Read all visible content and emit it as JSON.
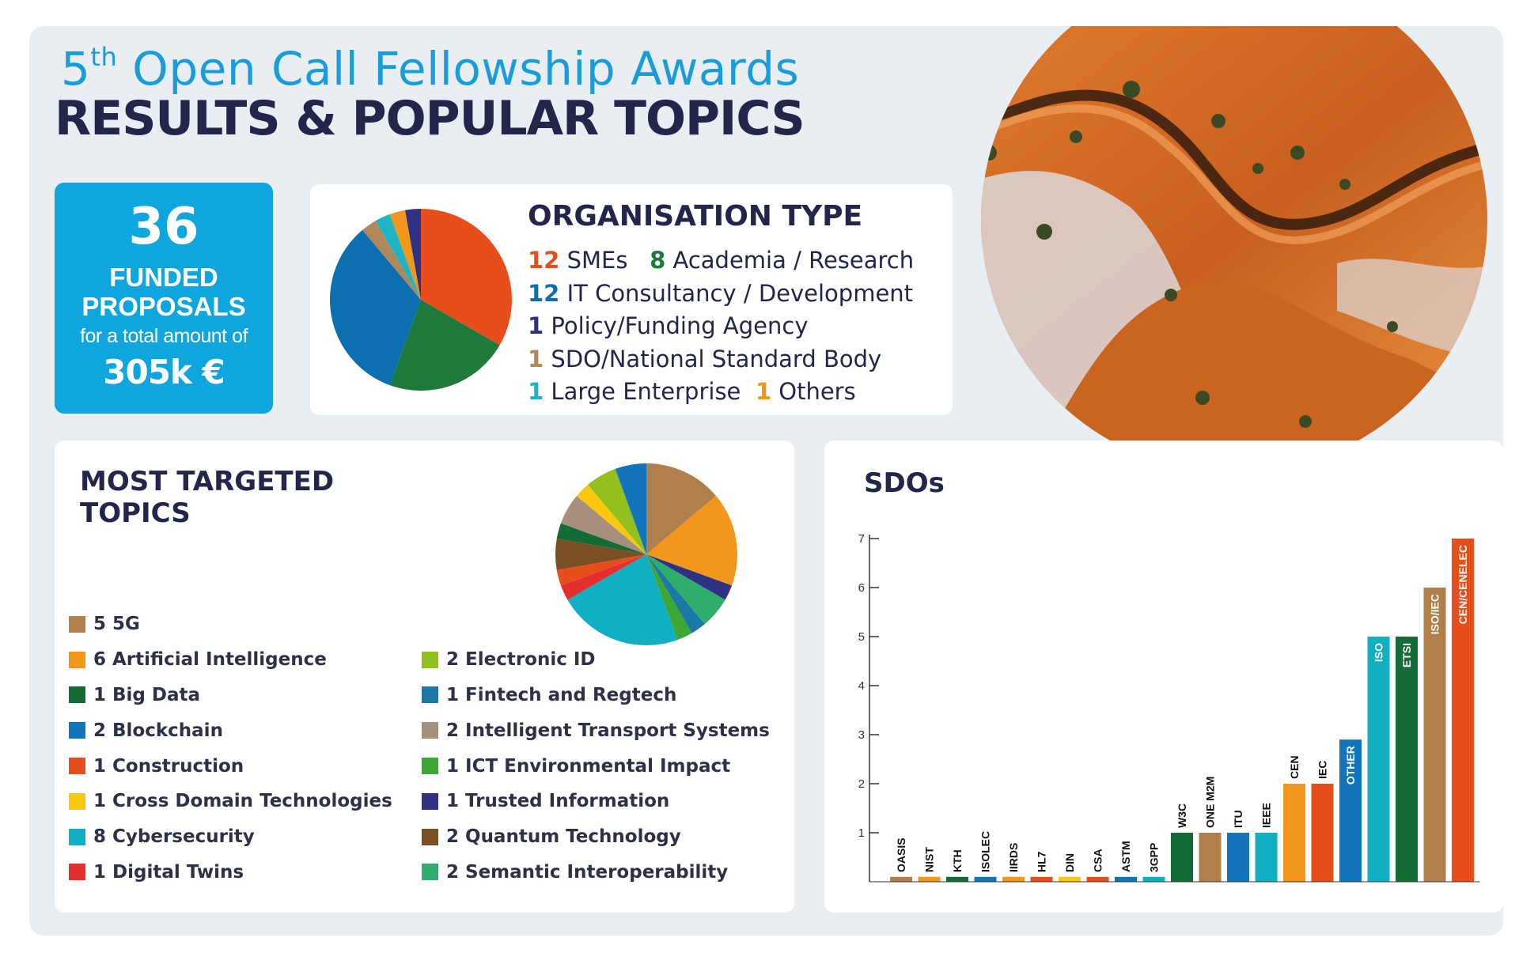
{
  "header": {
    "title_prefix": "5",
    "title_sup": "th",
    "title_rest": " Open Call Fellowship Awards",
    "subtitle": "RESULTS & POPULAR TOPICS"
  },
  "funded": {
    "count": "36",
    "label_line1": "FUNDED",
    "label_line2": "PROPOSALS",
    "small": "for a total amount of",
    "amount": "305k €"
  },
  "organisation": {
    "title": "ORGANISATION TYPE",
    "items": [
      {
        "count": "12",
        "label": "SMEs",
        "color": "#e84e1b"
      },
      {
        "count": "8",
        "label": "Academia / Research",
        "color": "#1d7a3a"
      },
      {
        "count": "12",
        "label": "IT Consultancy / Development",
        "color": "#0b6fb0"
      },
      {
        "count": "1",
        "label": "Policy/Funding Agency",
        "color": "#2e3184"
      },
      {
        "count": "1",
        "label": "SDO/National Standard Body",
        "color": "#b0875a"
      },
      {
        "count": "1",
        "label": "Large Enterprise",
        "color": "#1fb3c4"
      },
      {
        "count": "1",
        "label": "Others",
        "color": "#f3961c"
      }
    ]
  },
  "topics": {
    "title_line1": "MOST TARGETED",
    "title_line2": "TOPICS",
    "items": [
      {
        "count": "5",
        "label": "5G",
        "color": "#b07f4b"
      },
      {
        "count": "6",
        "label": "Artificial Intelligence",
        "color": "#f3961c"
      },
      {
        "count": "1",
        "label": "Big Data",
        "color": "#136b35"
      },
      {
        "count": "2",
        "label": "Blockchain",
        "color": "#1274bb"
      },
      {
        "count": "1",
        "label": "Construction",
        "color": "#e84e1b"
      },
      {
        "count": "1",
        "label": "Cross Domain Technologies",
        "color": "#f9c80e"
      },
      {
        "count": "8",
        "label": "Cybersecurity",
        "color": "#10afc2"
      },
      {
        "count": "1",
        "label": "Digital Twins",
        "color": "#e3302c"
      },
      {
        "count": "2",
        "label": "Electronic ID",
        "color": "#93c01f"
      },
      {
        "count": "1",
        "label": "Fintech and Regtech",
        "color": "#1b79a6"
      },
      {
        "count": "2",
        "label": "Intelligent Transport Systems",
        "color": "#a88f7b"
      },
      {
        "count": "1",
        "label": "ICT Environmental Impact",
        "color": "#3fa535"
      },
      {
        "count": "1",
        "label": "Trusted Information",
        "color": "#2e3184"
      },
      {
        "count": "2",
        "label": "Quantum Technology",
        "color": "#7a4f23"
      },
      {
        "count": "2",
        "label": "Semantic Interoperability",
        "color": "#2fae6b"
      }
    ]
  },
  "chart_data": [
    {
      "type": "pie",
      "title": "ORGANISATION TYPE",
      "categories": [
        "SMEs",
        "Academia / Research",
        "IT Consultancy / Development",
        "SDO/National Standard Body",
        "Large Enterprise",
        "Others",
        "Policy/Funding Agency"
      ],
      "values": [
        12,
        8,
        12,
        1,
        1,
        1,
        1
      ],
      "colors": [
        "#e84e1b",
        "#1d7a3a",
        "#0b6fb0",
        "#b0875a",
        "#1fb3c4",
        "#f3961c",
        "#2e3184"
      ]
    },
    {
      "type": "pie",
      "title": "MOST TARGETED TOPICS",
      "categories": [
        "5G",
        "Artificial Intelligence",
        "Trusted Information",
        "Semantic Interoperability",
        "Fintech and Regtech",
        "ICT Environmental Impact",
        "Cybersecurity",
        "Digital Twins",
        "Construction",
        "Quantum Technology",
        "Big Data",
        "Intelligent Transport Systems",
        "Cross Domain Technologies",
        "Electronic ID",
        "Blockchain"
      ],
      "values": [
        5,
        6,
        1,
        2,
        1,
        1,
        8,
        1,
        1,
        2,
        1,
        2,
        1,
        2,
        2
      ],
      "colors": [
        "#b07f4b",
        "#f3961c",
        "#2e3184",
        "#2fae6b",
        "#1b79a6",
        "#3fa535",
        "#10afc2",
        "#e3302c",
        "#e84e1b",
        "#7a4f23",
        "#136b35",
        "#a88f7b",
        "#f9c80e",
        "#93c01f",
        "#1274bb"
      ]
    },
    {
      "type": "bar",
      "title": "SDOs",
      "categories": [
        "OASIS",
        "NIST",
        "KTH",
        "ISOLEC",
        "IIRDS",
        "HL7",
        "DIN",
        "CSA",
        "ASTM",
        "3GPP",
        "W3C",
        "ONE M2M",
        "ITU",
        "IEEE",
        "CEN",
        "IEC",
        "OTHER",
        "ISO",
        "ETSI",
        "ISO/IEC",
        "CEN/CENELEC"
      ],
      "values": [
        0.1,
        0.1,
        0.1,
        0.1,
        0.1,
        0.1,
        0.1,
        0.1,
        0.1,
        0.1,
        1,
        1,
        1,
        1,
        2,
        2,
        2.9,
        5,
        5,
        6,
        7
      ],
      "colors": [
        "#b07f4b",
        "#f3961c",
        "#136b35",
        "#1274bb",
        "#f3961c",
        "#e84e1b",
        "#f9c80e",
        "#e84e1b",
        "#1274bb",
        "#10afc2",
        "#136b35",
        "#b07f4b",
        "#1274bb",
        "#10afc2",
        "#f3961c",
        "#e84e1b",
        "#1274bb",
        "#10afc2",
        "#136b35",
        "#b07f4b",
        "#e84e1b"
      ],
      "yticks": [
        "1",
        "2",
        "3",
        "4",
        "5",
        "6",
        "7"
      ],
      "ylim": [
        0,
        7
      ]
    }
  ]
}
